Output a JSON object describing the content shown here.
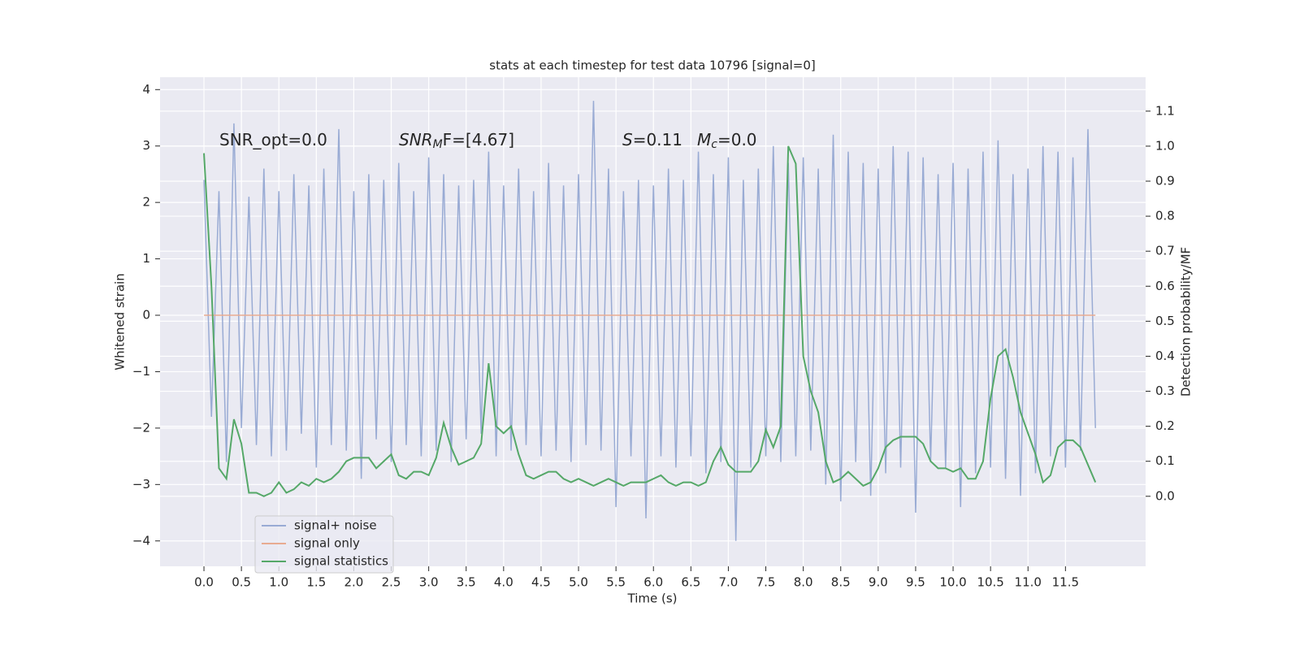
{
  "chart_data": {
    "type": "line",
    "title": "stats at each timestep for test data 10796 [signal=0]",
    "xlabel": "Time (s)",
    "ylabel": "Whitened strain",
    "y2label": "Detection probability/MF",
    "annotations": [
      {
        "main": "SNR_opt=0.0"
      },
      {
        "main": "SNR",
        "sub": "M",
        "after": "F=[4.67]"
      },
      {
        "main": "S",
        "after": "=0.11"
      },
      {
        "main": "M",
        "sub": "c",
        "after": "=0.0"
      }
    ],
    "x": [
      0,
      0.1,
      0.2,
      0.3,
      0.4,
      0.5,
      0.6,
      0.7,
      0.8,
      0.9,
      1,
      1.1,
      1.2,
      1.3,
      1.4,
      1.5,
      1.6,
      1.7,
      1.8,
      1.9,
      2,
      2.1,
      2.2,
      2.3,
      2.4,
      2.5,
      2.6,
      2.7,
      2.8,
      2.9,
      3,
      3.1,
      3.2,
      3.3,
      3.4,
      3.5,
      3.6,
      3.7,
      3.8,
      3.9,
      4,
      4.1,
      4.2,
      4.3,
      4.4,
      4.5,
      4.6,
      4.7,
      4.8,
      4.9,
      5,
      5.1,
      5.2,
      5.3,
      5.4,
      5.5,
      5.6,
      5.7,
      5.8,
      5.9,
      6,
      6.1,
      6.2,
      6.3,
      6.4,
      6.5,
      6.6,
      6.7,
      6.8,
      6.9,
      7,
      7.1,
      7.2,
      7.3,
      7.4,
      7.5,
      7.6,
      7.7,
      7.8,
      7.9,
      8,
      8.1,
      8.2,
      8.3,
      8.4,
      8.5,
      8.6,
      8.7,
      8.8,
      8.9,
      9,
      9.1,
      9.2,
      9.3,
      9.4,
      9.5,
      9.6,
      9.7,
      9.8,
      9.9,
      10,
      10.1,
      10.2,
      10.3,
      10.4,
      10.5,
      10.6,
      10.7,
      10.8,
      10.9,
      11,
      11.1,
      11.2,
      11.3,
      11.4,
      11.5,
      11.6,
      11.7,
      11.8,
      11.9
    ],
    "series": [
      {
        "name": "signal+ noise",
        "color": "#99abd4",
        "values": [
          2.4,
          -1.8,
          2.2,
          -2.6,
          3.4,
          -2.0,
          2.1,
          -2.3,
          2.6,
          -2.5,
          2.2,
          -2.4,
          2.5,
          -2.1,
          2.3,
          -2.7,
          2.6,
          -2.3,
          3.3,
          -2.4,
          2.2,
          -2.9,
          2.5,
          -2.2,
          2.4,
          -2.6,
          2.7,
          -2.3,
          2.2,
          -2.5,
          2.8,
          -2.4,
          2.5,
          -2.6,
          2.3,
          -2.2,
          2.4,
          -2.1,
          2.9,
          -2.5,
          2.3,
          -2.4,
          2.6,
          -2.3,
          2.2,
          -2.5,
          2.7,
          -2.4,
          2.3,
          -2.6,
          2.5,
          -2.3,
          3.8,
          -2.4,
          2.6,
          -3.4,
          2.2,
          -2.5,
          2.4,
          -3.6,
          2.3,
          -2.5,
          2.6,
          -2.7,
          2.4,
          -2.5,
          2.9,
          -2.8,
          2.5,
          -2.6,
          2.8,
          -4.0,
          2.4,
          -2.7,
          2.6,
          -2.5,
          3.0,
          -2.6,
          2.7,
          -2.5,
          2.8,
          -2.4,
          2.6,
          -3.0,
          3.2,
          -3.3,
          2.9,
          -2.6,
          2.7,
          -3.2,
          2.6,
          -2.8,
          3.0,
          -2.7,
          2.9,
          -3.5,
          2.8,
          -2.6,
          2.5,
          -2.7,
          2.7,
          -3.4,
          2.6,
          -2.8,
          2.9,
          -2.7,
          3.1,
          -2.9,
          2.5,
          -3.2,
          2.6,
          -2.8,
          3.0,
          -2.5,
          2.9,
          -2.7,
          2.8,
          -2.4,
          3.3,
          -2.0
        ]
      },
      {
        "name": "signal only",
        "color": "#e8ab91",
        "values": [
          0,
          0,
          0,
          0,
          0,
          0,
          0,
          0,
          0,
          0,
          0,
          0,
          0,
          0,
          0,
          0,
          0,
          0,
          0,
          0,
          0,
          0,
          0,
          0,
          0,
          0,
          0,
          0,
          0,
          0,
          0,
          0,
          0,
          0,
          0,
          0,
          0,
          0,
          0,
          0,
          0,
          0,
          0,
          0,
          0,
          0,
          0,
          0,
          0,
          0,
          0,
          0,
          0,
          0,
          0,
          0,
          0,
          0,
          0,
          0,
          0,
          0,
          0,
          0,
          0,
          0,
          0,
          0,
          0,
          0,
          0,
          0,
          0,
          0,
          0,
          0,
          0,
          0,
          0,
          0,
          0,
          0,
          0,
          0,
          0,
          0,
          0,
          0,
          0,
          0,
          0,
          0,
          0,
          0,
          0,
          0,
          0,
          0,
          0,
          0,
          0,
          0,
          0,
          0,
          0,
          0,
          0,
          0,
          0,
          0,
          0,
          0,
          0,
          0,
          0,
          0,
          0,
          0,
          0,
          0
        ]
      },
      {
        "name": "signal statistics",
        "color": "#55a868",
        "axis": "y2",
        "values": [
          0.98,
          0.6,
          0.08,
          0.05,
          0.22,
          0.15,
          0.01,
          0.01,
          0.0,
          0.01,
          0.04,
          0.01,
          0.02,
          0.04,
          0.03,
          0.05,
          0.04,
          0.05,
          0.07,
          0.1,
          0.11,
          0.11,
          0.11,
          0.08,
          0.1,
          0.12,
          0.06,
          0.05,
          0.07,
          0.07,
          0.06,
          0.11,
          0.21,
          0.14,
          0.09,
          0.1,
          0.11,
          0.15,
          0.38,
          0.2,
          0.18,
          0.2,
          0.12,
          0.06,
          0.05,
          0.06,
          0.07,
          0.07,
          0.05,
          0.04,
          0.05,
          0.04,
          0.03,
          0.04,
          0.05,
          0.04,
          0.03,
          0.04,
          0.04,
          0.04,
          0.05,
          0.06,
          0.04,
          0.03,
          0.04,
          0.04,
          0.03,
          0.04,
          0.1,
          0.14,
          0.09,
          0.07,
          0.07,
          0.07,
          0.1,
          0.19,
          0.14,
          0.2,
          1.0,
          0.95,
          0.4,
          0.3,
          0.24,
          0.1,
          0.04,
          0.05,
          0.07,
          0.05,
          0.03,
          0.04,
          0.08,
          0.14,
          0.16,
          0.17,
          0.17,
          0.17,
          0.15,
          0.1,
          0.08,
          0.08,
          0.07,
          0.08,
          0.05,
          0.05,
          0.1,
          0.28,
          0.4,
          0.42,
          0.34,
          0.24,
          0.18,
          0.12,
          0.04,
          0.06,
          0.14,
          0.16,
          0.16,
          0.14,
          0.09,
          0.04
        ]
      }
    ],
    "xlim": [
      -0.586,
      12.57
    ],
    "xticks": [
      {
        "value": 0,
        "label": "0.0"
      },
      {
        "value": 0.5,
        "label": "0.5"
      },
      {
        "value": 1,
        "label": "1.0"
      },
      {
        "value": 1.5,
        "label": "1.5"
      },
      {
        "value": 2,
        "label": "2.0"
      },
      {
        "value": 2.5,
        "label": "2.5"
      },
      {
        "value": 3,
        "label": "3.0"
      },
      {
        "value": 3.5,
        "label": "3.5"
      },
      {
        "value": 4,
        "label": "4.0"
      },
      {
        "value": 4.5,
        "label": "4.5"
      },
      {
        "value": 5,
        "label": "5.0"
      },
      {
        "value": 5.5,
        "label": "5.5"
      },
      {
        "value": 6,
        "label": "6.0"
      },
      {
        "value": 6.5,
        "label": "6.5"
      },
      {
        "value": 7,
        "label": "7.0"
      },
      {
        "value": 7.5,
        "label": "7.5"
      },
      {
        "value": 8,
        "label": "8.0"
      },
      {
        "value": 8.5,
        "label": "8.5"
      },
      {
        "value": 9,
        "label": "9.0"
      },
      {
        "value": 9.5,
        "label": "9.5"
      },
      {
        "value": 10,
        "label": "10.0"
      },
      {
        "value": 10.5,
        "label": "10.5"
      },
      {
        "value": 11,
        "label": "11.0"
      },
      {
        "value": 11.5,
        "label": "11.5"
      }
    ],
    "ylim": [
      -4.45,
      4.22
    ],
    "yticks": [
      {
        "value": -4,
        "label": "−4"
      },
      {
        "value": -3,
        "label": "−3"
      },
      {
        "value": -2,
        "label": "−2"
      },
      {
        "value": -1,
        "label": "−1"
      },
      0,
      1,
      2,
      3,
      4
    ],
    "y2lim": [
      -0.2,
      1.197
    ],
    "y2ticks": [
      {
        "value": 0,
        "label": "0.0"
      },
      0.1,
      0.2,
      0.3,
      0.4,
      0.5,
      0.6,
      0.7,
      0.8,
      0.9,
      {
        "value": 1,
        "label": "1.0"
      },
      1.1
    ],
    "grid": true,
    "legend": "lower left"
  }
}
